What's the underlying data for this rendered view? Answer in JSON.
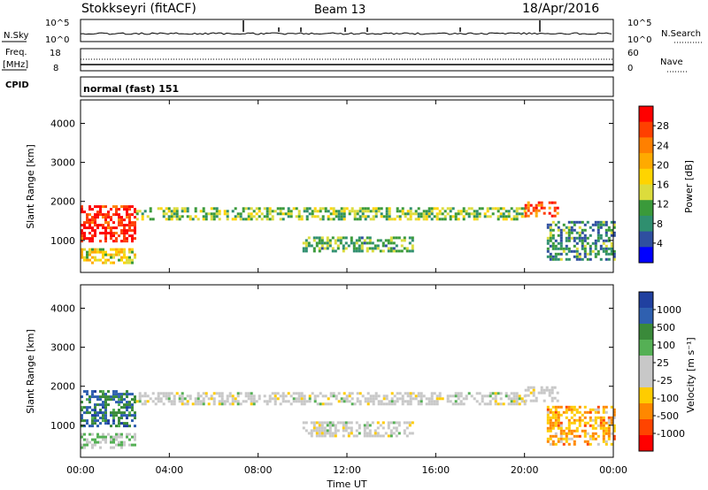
{
  "header": {
    "station": "Stokkseyri (fitACF)",
    "beam": "Beam 13",
    "date": "18/Apr/2016"
  },
  "panels": {
    "noise": {
      "left_label": "N.Sky",
      "right_label": "N.Search",
      "left_ticks": [
        "10^5",
        "10^0"
      ],
      "right_ticks": [
        "10^5",
        "10^0"
      ]
    },
    "freq": {
      "left_label": "Freq.",
      "left_unit": "[MHz]",
      "left_ticks": [
        "18",
        "8"
      ],
      "right_label": "Nave",
      "right_ticks": [
        "60",
        "0"
      ]
    },
    "cpid": {
      "label": "CPID",
      "mode_text": "normal (fast) 151"
    }
  },
  "axes": {
    "ylabel": "Slant Range [km]",
    "xlabel": "Time UT",
    "yticks": [
      1000,
      2000,
      3000,
      4000
    ],
    "xticks": [
      "00:00",
      "04:00",
      "08:00",
      "12:00",
      "16:00",
      "20:00",
      "00:00"
    ]
  },
  "colorbars": {
    "power": {
      "label": "Power [dB]",
      "ticks": [
        "28",
        "24",
        "20",
        "16",
        "12",
        "8",
        "4"
      ],
      "colors": [
        "#ff0000",
        "#ff4000",
        "#ff8000",
        "#ffaa00",
        "#ffd400",
        "#dcdc3c",
        "#3a9a3a",
        "#2f8f6f",
        "#2f4fa0",
        "#0000ff"
      ]
    },
    "velocity": {
      "label": "Velocity [m s⁻¹]",
      "ticks": [
        "1000",
        "500",
        "100",
        "25",
        "-25",
        "-100",
        "-500",
        "-1000"
      ],
      "colors": [
        "#2040a0",
        "#2f60b0",
        "#3a8a3a",
        "#55b055",
        "#c8c8c8",
        "#c8c8c8",
        "#ffcc00",
        "#ff8800",
        "#ff4400",
        "#ff0000"
      ]
    }
  },
  "chart_data": [
    {
      "type": "heatmap",
      "title": "Power",
      "xlabel": "Time UT",
      "ylabel": "Slant Range [km]",
      "xlim": [
        0,
        24
      ],
      "ylim": [
        180,
        4600
      ],
      "colorbar_range": [
        0,
        30
      ],
      "regions": [
        {
          "t0": 0.0,
          "t1": 2.5,
          "r0": 1000,
          "r1": 1900,
          "value": 28
        },
        {
          "t0": 0.0,
          "t1": 2.5,
          "r0": 400,
          "r1": 800,
          "value": 16
        },
        {
          "t0": 2.5,
          "t1": 20.0,
          "r0": 1550,
          "r1": 1850,
          "value": 12
        },
        {
          "t0": 10.0,
          "t1": 15.0,
          "r0": 750,
          "r1": 1100,
          "value": 10
        },
        {
          "t0": 20.0,
          "t1": 21.5,
          "r0": 1600,
          "r1": 2000,
          "value": 24
        },
        {
          "t0": 21.0,
          "t1": 24.0,
          "r0": 500,
          "r1": 1500,
          "value": 8
        }
      ]
    },
    {
      "type": "heatmap",
      "title": "Velocity",
      "xlabel": "Time UT",
      "ylabel": "Slant Range [km]",
      "xlim": [
        0,
        24
      ],
      "ylim": [
        180,
        4600
      ],
      "colorbar_range": [
        -1000,
        1000
      ],
      "regions": [
        {
          "t0": 0.0,
          "t1": 2.5,
          "r0": 1000,
          "r1": 1900,
          "value": 600
        },
        {
          "t0": 0.0,
          "t1": 2.5,
          "r0": 400,
          "r1": 800,
          "value": 150
        },
        {
          "t0": 2.5,
          "t1": 20.0,
          "r0": 1550,
          "r1": 1850,
          "value": 0
        },
        {
          "t0": 10.0,
          "t1": 15.0,
          "r0": 750,
          "r1": 1100,
          "value": 0
        },
        {
          "t0": 20.0,
          "t1": 21.5,
          "r0": 1600,
          "r1": 2000,
          "value": 0
        },
        {
          "t0": 21.0,
          "t1": 24.0,
          "r0": 500,
          "r1": 1500,
          "value": -400
        }
      ]
    }
  ]
}
